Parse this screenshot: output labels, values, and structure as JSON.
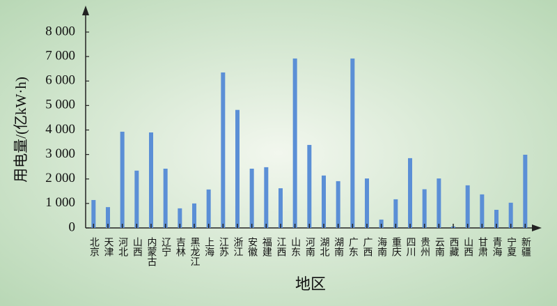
{
  "chart_data": {
    "type": "bar",
    "x_label": "地区",
    "y_label": "用电量/(亿kW·h)",
    "categories": [
      "北京",
      "天津",
      "河北",
      "山西",
      "内蒙古",
      "辽宁",
      "吉林",
      "黑龙江",
      "上海",
      "江苏",
      "浙江",
      "安徽",
      "福建",
      "江西",
      "山东",
      "河南",
      "湖北",
      "湖南",
      "广东",
      "广西",
      "海南",
      "重庆",
      "四川",
      "贵州",
      "云南",
      "西藏",
      "山西",
      "甘肃",
      "青海",
      "宁夏",
      "新疆"
    ],
    "values": [
      1140,
      850,
      3930,
      2340,
      3900,
      2420,
      800,
      1000,
      1570,
      6350,
      4820,
      2420,
      2480,
      1620,
      6920,
      3390,
      2140,
      1910,
      6920,
      2020,
      340,
      1170,
      2850,
      1580,
      2020,
      60,
      1740,
      1370,
      740,
      1030,
      2990
    ],
    "color": "#5b8fd6",
    "ylim": [
      0,
      8000
    ],
    "yticks": [
      0,
      {
        "value": 1000,
        "label": "1 000"
      },
      {
        "value": 2000,
        "label": "2 000"
      },
      {
        "value": 3000,
        "label": "3 000"
      },
      {
        "value": 4000,
        "label": "4 000"
      },
      {
        "value": 5000,
        "label": "5 000"
      },
      {
        "value": 6000,
        "label": "6 000"
      },
      {
        "value": 7000,
        "label": "7 000"
      },
      {
        "value": 8000,
        "label": "8 000"
      }
    ],
    "grid": false
  }
}
